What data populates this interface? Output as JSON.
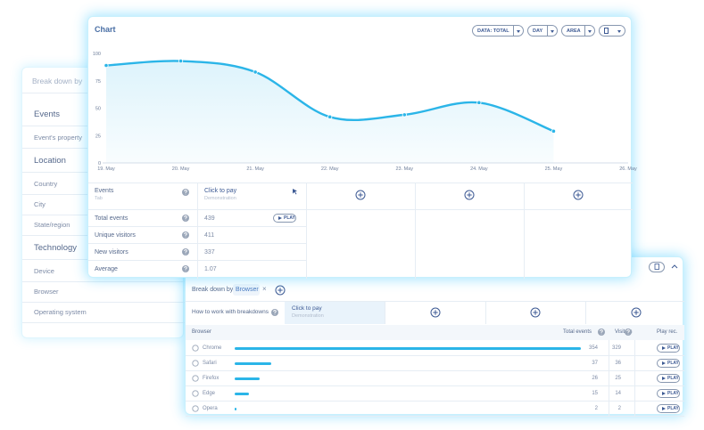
{
  "sidebar": {
    "title": "Break down by",
    "groups": [
      {
        "heading": "Events",
        "items": [
          "Event's property"
        ]
      },
      {
        "heading": "Location",
        "items": [
          "Country",
          "City",
          "State/region"
        ]
      },
      {
        "heading": "Technology",
        "items": [
          "Device",
          "Browser",
          "Operating system"
        ]
      }
    ]
  },
  "chart_card": {
    "title": "Chart",
    "controls": [
      "DATA: TOTAL",
      "DAY",
      "AREA"
    ],
    "chart": {
      "type": "area",
      "categories": [
        "19. May",
        "20. May",
        "21. May",
        "22. May",
        "23. May",
        "24. May",
        "25. May",
        "26. May"
      ],
      "values": [
        89,
        93,
        83,
        42,
        44,
        55,
        29,
        null
      ],
      "ylim": [
        0,
        100
      ],
      "yticks": [
        0,
        25,
        50,
        75,
        100
      ],
      "color": "#2bb5e8",
      "grid": false
    },
    "table": {
      "header": {
        "label": "Events",
        "sublabel": "Tab",
        "event": "Click to pay",
        "event_sub": "Demonstration"
      },
      "rows": [
        {
          "label": "Total events",
          "value": 439,
          "button": "PLAY"
        },
        {
          "label": "Unique visitors",
          "value": 411
        },
        {
          "label": "New visitors",
          "value": 337
        },
        {
          "label": "Average",
          "value": 1.07
        }
      ]
    }
  },
  "breakdown_card": {
    "label": "Break down by:",
    "chip": "Browser",
    "help": "How to work with breakdowns",
    "event": "Click to pay",
    "event_sub": "Demonstration",
    "columns": [
      "Browser",
      "Total events",
      "Visitors",
      "Play rec."
    ],
    "rows": [
      {
        "name": "Chrome",
        "total_events": 354,
        "visitors": 329,
        "button": "PLAY"
      },
      {
        "name": "Safari",
        "total_events": 37,
        "visitors": 36,
        "button": "PLAY"
      },
      {
        "name": "Firefox",
        "total_events": 26,
        "visitors": 25,
        "button": "PLAY"
      },
      {
        "name": "Edge",
        "total_events": 15,
        "visitors": 14,
        "button": "PLAY"
      },
      {
        "name": "Opera",
        "total_events": 2,
        "visitors": 2,
        "button": "PLAY"
      }
    ]
  }
}
